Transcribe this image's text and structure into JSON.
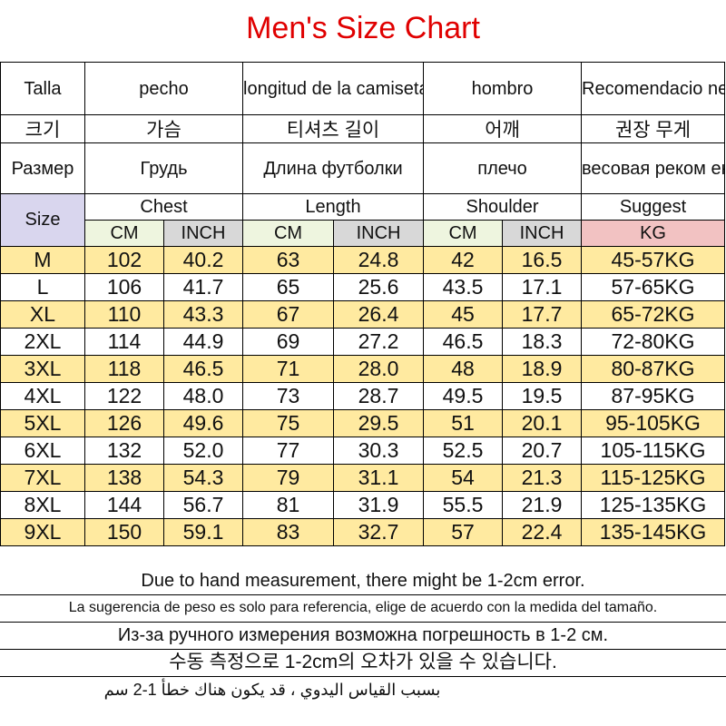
{
  "title": "Men's Size Chart",
  "headers": {
    "spanish": [
      "Talla",
      "pecho",
      "longitud de la camiseta",
      "hombro",
      "Recomendacio nes de peso"
    ],
    "korean": [
      "크기",
      "가슴",
      "티셔츠 길이",
      "어깨",
      "권장 무게"
    ],
    "russian": [
      "Размер",
      "Грудь",
      "Длина футболки",
      "плечо",
      "весовая реком ендации"
    ],
    "size": "Size",
    "english": [
      "Chest",
      "Length",
      "Shoulder",
      "Suggest"
    ],
    "units": [
      "CM",
      "INCH",
      "CM",
      "INCH",
      "CM",
      "INCH",
      "KG"
    ]
  },
  "rows": [
    [
      "M",
      "102",
      "40.2",
      "63",
      "24.8",
      "42",
      "16.5",
      "45-57KG"
    ],
    [
      "L",
      "106",
      "41.7",
      "65",
      "25.6",
      "43.5",
      "17.1",
      "57-65KG"
    ],
    [
      "XL",
      "110",
      "43.3",
      "67",
      "26.4",
      "45",
      "17.7",
      "65-72KG"
    ],
    [
      "2XL",
      "114",
      "44.9",
      "69",
      "27.2",
      "46.5",
      "18.3",
      "72-80KG"
    ],
    [
      "3XL",
      "118",
      "46.5",
      "71",
      "28.0",
      "48",
      "18.9",
      "80-87KG"
    ],
    [
      "4XL",
      "122",
      "48.0",
      "73",
      "28.7",
      "49.5",
      "19.5",
      "87-95KG"
    ],
    [
      "5XL",
      "126",
      "49.6",
      "75",
      "29.5",
      "51",
      "20.1",
      "95-105KG"
    ],
    [
      "6XL",
      "132",
      "52.0",
      "77",
      "30.3",
      "52.5",
      "20.7",
      "105-115KG"
    ],
    [
      "7XL",
      "138",
      "54.3",
      "79",
      "31.1",
      "54",
      "21.3",
      "115-125KG"
    ],
    [
      "8XL",
      "144",
      "56.7",
      "81",
      "31.9",
      "55.5",
      "21.9",
      "125-135KG"
    ],
    [
      "9XL",
      "150",
      "59.1",
      "83",
      "32.7",
      "57",
      "22.4",
      "135-145KG"
    ]
  ],
  "notes": [
    "Due to hand measurement, there might be 1-2cm error.",
    "La sugerencia de peso es solo para referencia, elige de acuerdo con la medida del tamaño.",
    "Из-за ручного измерения возможна погрешность в 1-2 см.",
    "수동 측정으로 1-2cm의 오차가 있을 수 있습니다.",
    "بسبب القياس اليدوي ، قد يكون هناك خطأ 1-2 سم"
  ],
  "colors": {
    "title": "#e00000",
    "size_header": "#d9d6ee",
    "alt_row": "#ffeaa0",
    "unit_cm": "#eef5df",
    "unit_inch": "#d8d8d8",
    "unit_kg": "#f2c2c2"
  }
}
